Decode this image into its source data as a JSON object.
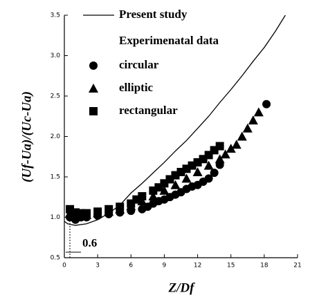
{
  "chart_data": {
    "type": "scatter",
    "xlabel": "Z/Df",
    "ylabel": "(Uf-Ua)/(Uc-Ua)",
    "legend_title": "Experimenatal data",
    "annotation": "0.6",
    "xlim": [
      0,
      21
    ],
    "xticks": [
      0,
      3,
      6,
      9,
      12,
      15,
      18,
      21
    ],
    "ylim": [
      0.5,
      3.5
    ],
    "yticks": [
      0.5,
      {
        "value": 1,
        "label": "1.0"
      },
      1.5,
      {
        "value": 2,
        "label": "2.0"
      },
      2.5,
      {
        "value": 3,
        "label": "3.0"
      },
      3.5
    ],
    "series": [
      {
        "name": "Present study",
        "mode": "line",
        "color": "#000000",
        "x": [
          0,
          0.3,
          0.6,
          1,
          2,
          3,
          4,
          5,
          6,
          7,
          8,
          9,
          10,
          11,
          12,
          13,
          14,
          15,
          16,
          17,
          18,
          19,
          19.9
        ],
        "values": [
          0.95,
          0.92,
          0.91,
          0.9,
          0.92,
          0.97,
          1.05,
          1.15,
          1.3,
          1.42,
          1.55,
          1.68,
          1.82,
          1.95,
          2.1,
          2.25,
          2.42,
          2.58,
          2.75,
          2.93,
          3.1,
          3.3,
          3.5
        ]
      },
      {
        "name": "circular",
        "mode": "markers",
        "marker": "circle",
        "color": "#000000",
        "x": [
          0.5,
          1,
          1.5,
          2,
          3,
          4,
          5,
          6,
          7,
          7.5,
          8,
          8.5,
          9,
          9.5,
          10,
          10.5,
          11,
          11.5,
          12,
          12.5,
          13,
          13.5,
          14,
          18.2
        ],
        "values": [
          1.0,
          0.97,
          1.0,
          1.0,
          1.02,
          1.04,
          1.06,
          1.08,
          1.1,
          1.13,
          1.17,
          1.2,
          1.22,
          1.25,
          1.28,
          1.31,
          1.35,
          1.38,
          1.4,
          1.44,
          1.48,
          1.55,
          1.65,
          2.4
        ]
      },
      {
        "name": "elliptic",
        "mode": "markers",
        "marker": "triangle",
        "color": "#000000",
        "x": [
          0.5,
          1,
          2,
          3,
          4,
          5,
          6,
          7,
          8,
          9,
          10,
          11,
          12,
          13,
          14,
          14.5,
          15,
          15.5,
          16,
          16.5,
          17,
          17.5
        ],
        "values": [
          1.05,
          1.03,
          1.03,
          1.05,
          1.07,
          1.1,
          1.14,
          1.2,
          1.26,
          1.33,
          1.4,
          1.48,
          1.56,
          1.64,
          1.72,
          1.78,
          1.85,
          1.9,
          2.0,
          2.1,
          2.2,
          2.3
        ]
      },
      {
        "name": "rectangular",
        "mode": "markers",
        "marker": "square",
        "color": "#000000",
        "x": [
          0.5,
          1,
          1.5,
          2,
          3,
          4,
          5,
          6,
          6.5,
          7,
          8,
          8.5,
          9,
          9.5,
          10,
          10.5,
          11,
          11.5,
          12,
          12.5,
          13,
          13.5,
          14
        ],
        "values": [
          1.1,
          1.06,
          1.05,
          1.05,
          1.07,
          1.1,
          1.13,
          1.17,
          1.22,
          1.26,
          1.33,
          1.37,
          1.42,
          1.47,
          1.52,
          1.56,
          1.6,
          1.64,
          1.68,
          1.72,
          1.77,
          1.83,
          1.88
        ]
      }
    ]
  }
}
